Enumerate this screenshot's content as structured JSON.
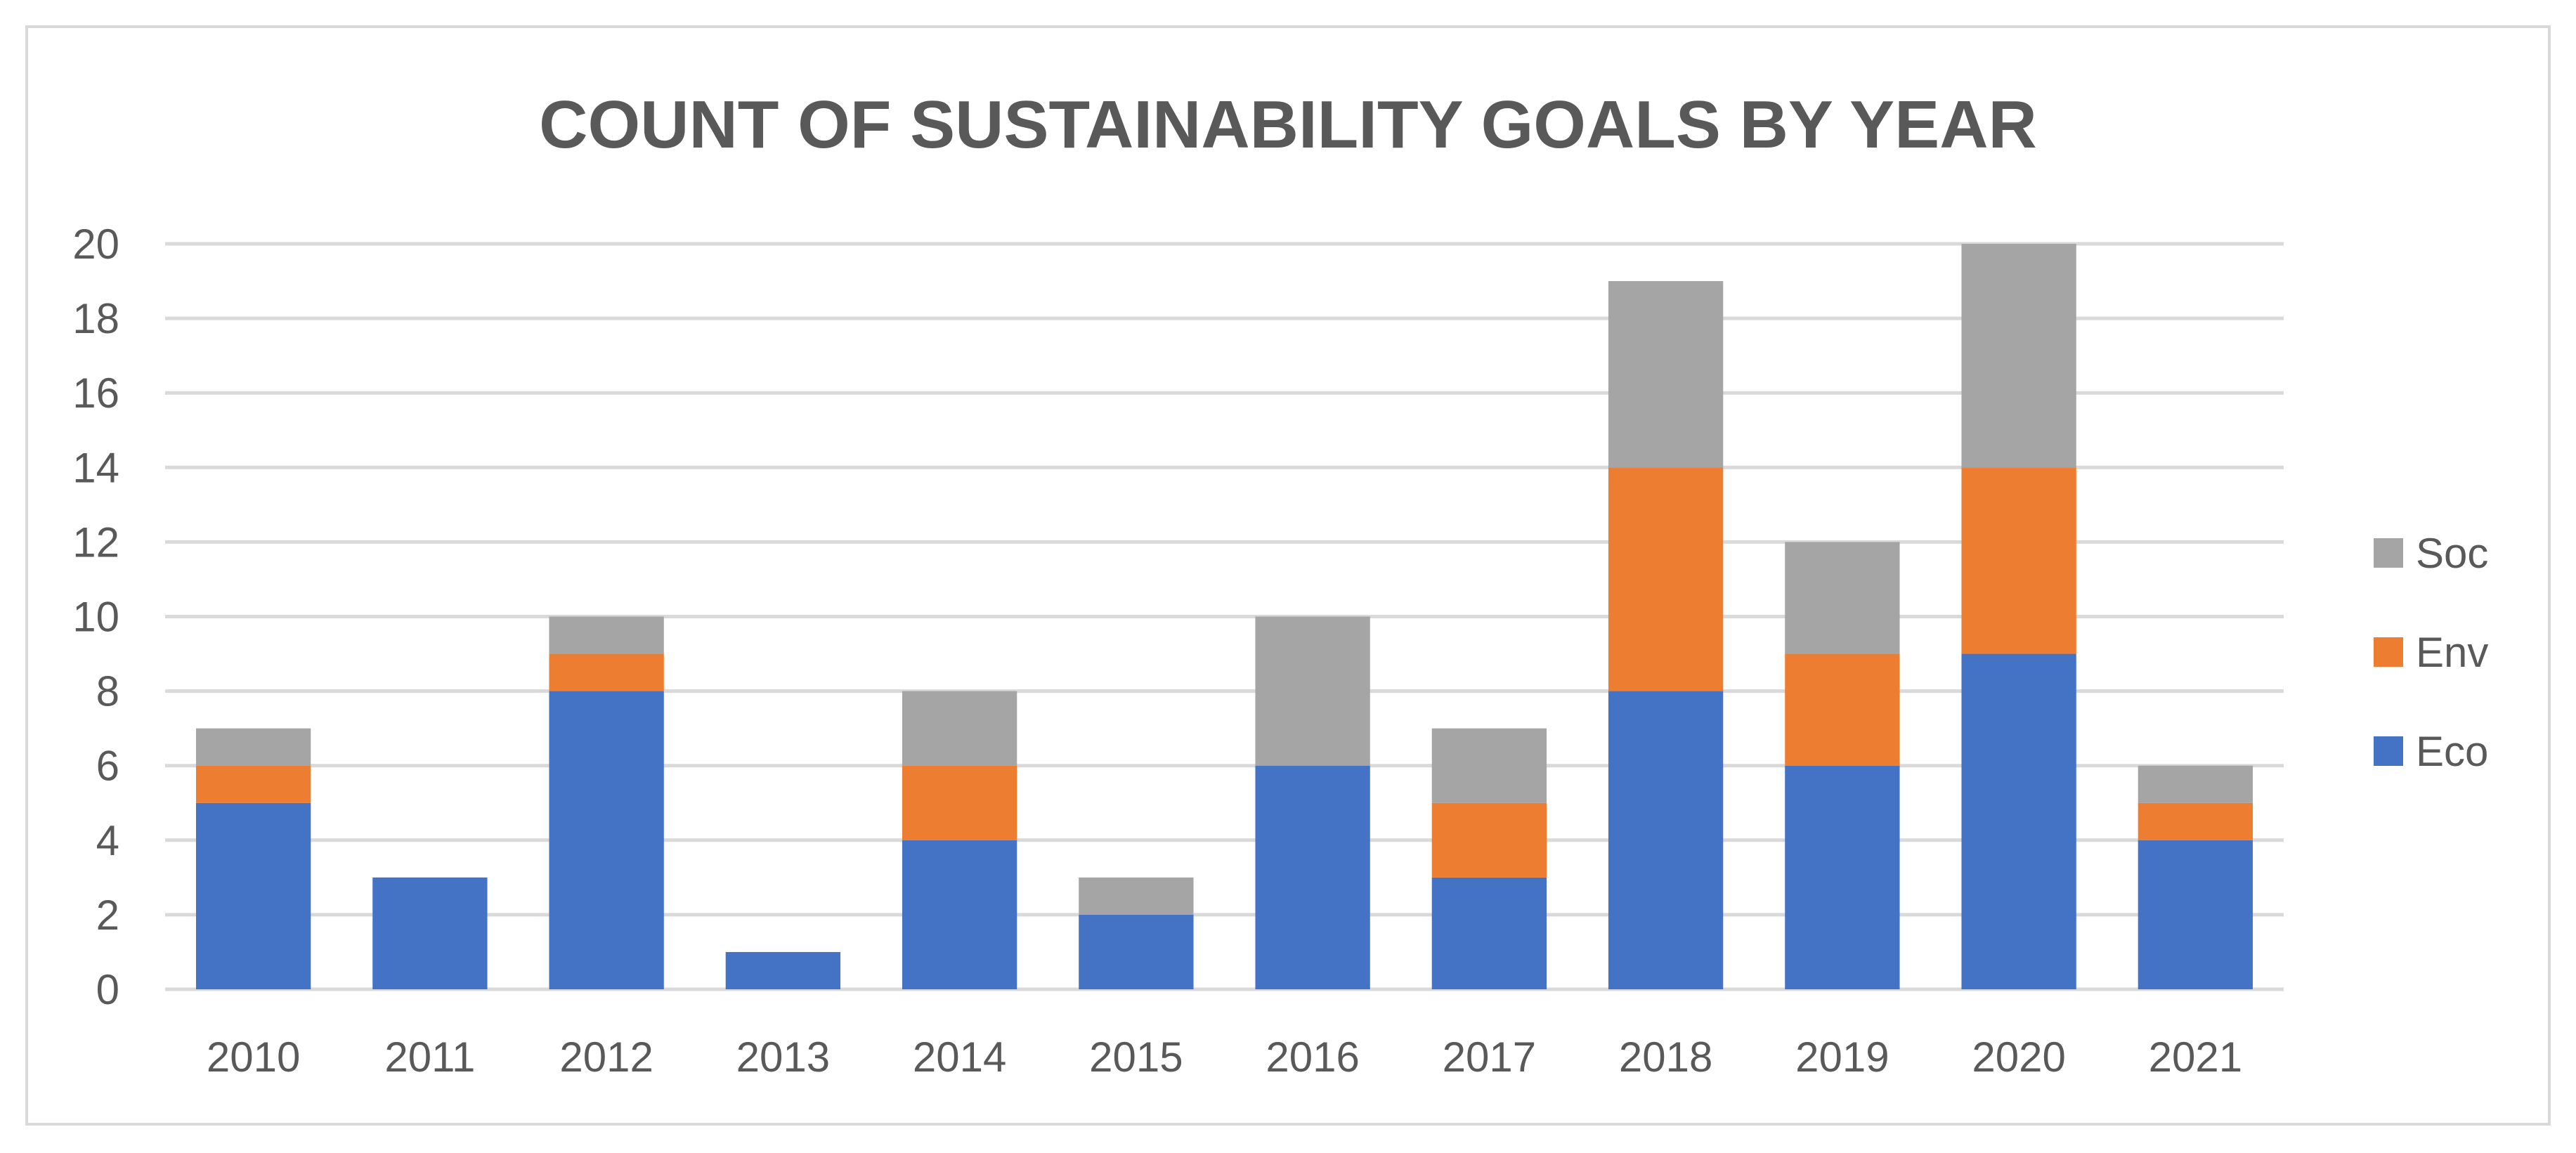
{
  "chart_data": {
    "type": "bar",
    "stacked": true,
    "title": "COUNT OF SUSTAINABILITY GOALS BY YEAR",
    "xlabel": "",
    "ylabel": "",
    "ylim": [
      0,
      20
    ],
    "yticks": [
      "0",
      "2",
      "4",
      "6",
      "8",
      "10",
      "12",
      "14",
      "16",
      "18",
      "20"
    ],
    "grid": true,
    "legend_position": "right",
    "categories": [
      "2010",
      "2011",
      "2012",
      "2013",
      "2014",
      "2015",
      "2016",
      "2017",
      "2018",
      "2019",
      "2020",
      "2021"
    ],
    "series": [
      {
        "name": "Eco",
        "color": "#4472c4",
        "values": [
          5,
          3,
          8,
          1,
          4,
          2,
          6,
          3,
          8,
          6,
          9,
          4
        ]
      },
      {
        "name": "Env",
        "color": "#ed7d31",
        "values": [
          1,
          0,
          1,
          0,
          2,
          0,
          0,
          2,
          6,
          3,
          5,
          1
        ]
      },
      {
        "name": "Soc",
        "color": "#a5a5a5",
        "values": [
          1,
          0,
          1,
          0,
          2,
          1,
          4,
          2,
          5,
          3,
          6,
          1
        ]
      }
    ]
  }
}
